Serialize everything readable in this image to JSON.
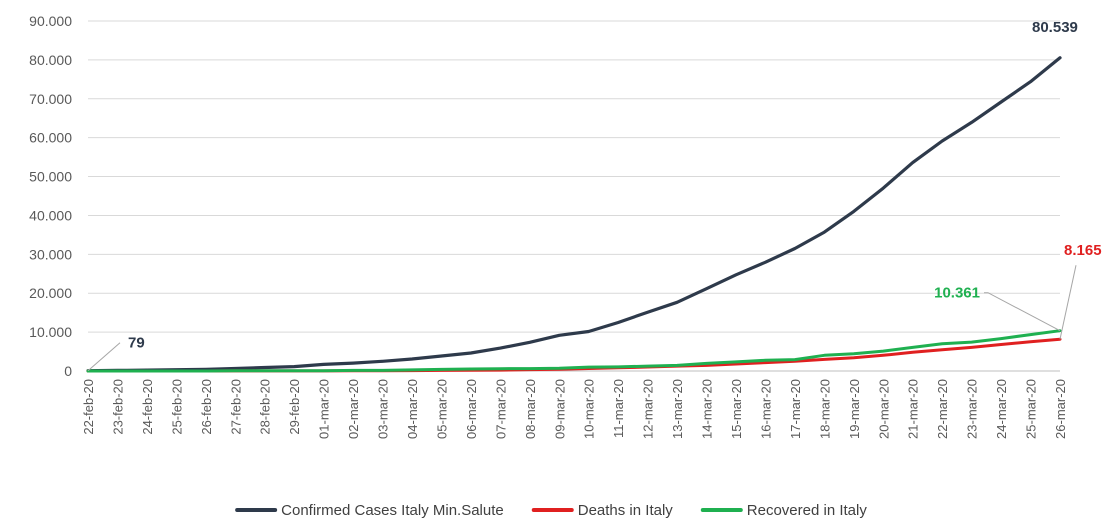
{
  "chart_data": {
    "type": "line",
    "categories": [
      "22-feb-20",
      "23-feb-20",
      "24-feb-20",
      "25-feb-20",
      "26-feb-20",
      "27-feb-20",
      "28-feb-20",
      "29-feb-20",
      "01-mar-20",
      "02-mar-20",
      "03-mar-20",
      "04-mar-20",
      "05-mar-20",
      "06-mar-20",
      "07-mar-20",
      "08-mar-20",
      "09-mar-20",
      "10-mar-20",
      "11-mar-20",
      "12-mar-20",
      "13-mar-20",
      "14-mar-20",
      "15-mar-20",
      "16-mar-20",
      "17-mar-20",
      "18-mar-20",
      "19-mar-20",
      "20-mar-20",
      "21-mar-20",
      "22-mar-20",
      "23-mar-20",
      "24-mar-20",
      "25-mar-20",
      "26-mar-20"
    ],
    "series": [
      {
        "name": "Confirmed Cases Italy Min.Salute",
        "color": "#2e3a4b",
        "values": [
          79,
          150,
          229,
          322,
          400,
          650,
          888,
          1128,
          1694,
          2036,
          2502,
          3089,
          3858,
          4636,
          5883,
          7375,
          9172,
          10149,
          12462,
          15113,
          17660,
          21157,
          24747,
          27980,
          31506,
          35713,
          41035,
          47021,
          53578,
          59138,
          63927,
          69176,
          74386,
          80539
        ]
      },
      {
        "name": "Deaths in Italy",
        "color": "#e02020",
        "values": [
          0,
          3,
          7,
          10,
          12,
          17,
          21,
          29,
          34,
          52,
          79,
          107,
          148,
          197,
          233,
          366,
          463,
          631,
          827,
          1016,
          1266,
          1441,
          1809,
          2158,
          2503,
          2978,
          3405,
          4032,
          4825,
          5476,
          6077,
          6820,
          7503,
          8165
        ]
      },
      {
        "name": "Recovered in Italy",
        "color": "#1fb050",
        "values": [
          0,
          0,
          1,
          1,
          3,
          45,
          46,
          50,
          83,
          149,
          160,
          276,
          414,
          523,
          589,
          622,
          724,
          1004,
          1045,
          1258,
          1439,
          1966,
          2335,
          2749,
          2941,
          4025,
          4440,
          5129,
          6072,
          7024,
          7432,
          8326,
          9362,
          10361
        ]
      }
    ],
    "ylim": [
      0,
      90000
    ],
    "yticks": [
      "0",
      "10.000",
      "20.000",
      "30.000",
      "40.000",
      "50.000",
      "60.000",
      "70.000",
      "80.000",
      "90.000"
    ],
    "grid": true,
    "legend_position": "bottom",
    "annotations": [
      {
        "text": "80.539",
        "series": 0,
        "index": 33,
        "color": "#2e3a4b"
      },
      {
        "text": "8.165",
        "series": 1,
        "index": 33,
        "color": "#e02020"
      },
      {
        "text": "10.361",
        "series": 2,
        "index": 33,
        "color": "#1fb050"
      },
      {
        "text": "79",
        "series": 0,
        "index": 0,
        "color": "#2e3a4b"
      }
    ],
    "title": "",
    "xlabel": "",
    "ylabel": ""
  }
}
